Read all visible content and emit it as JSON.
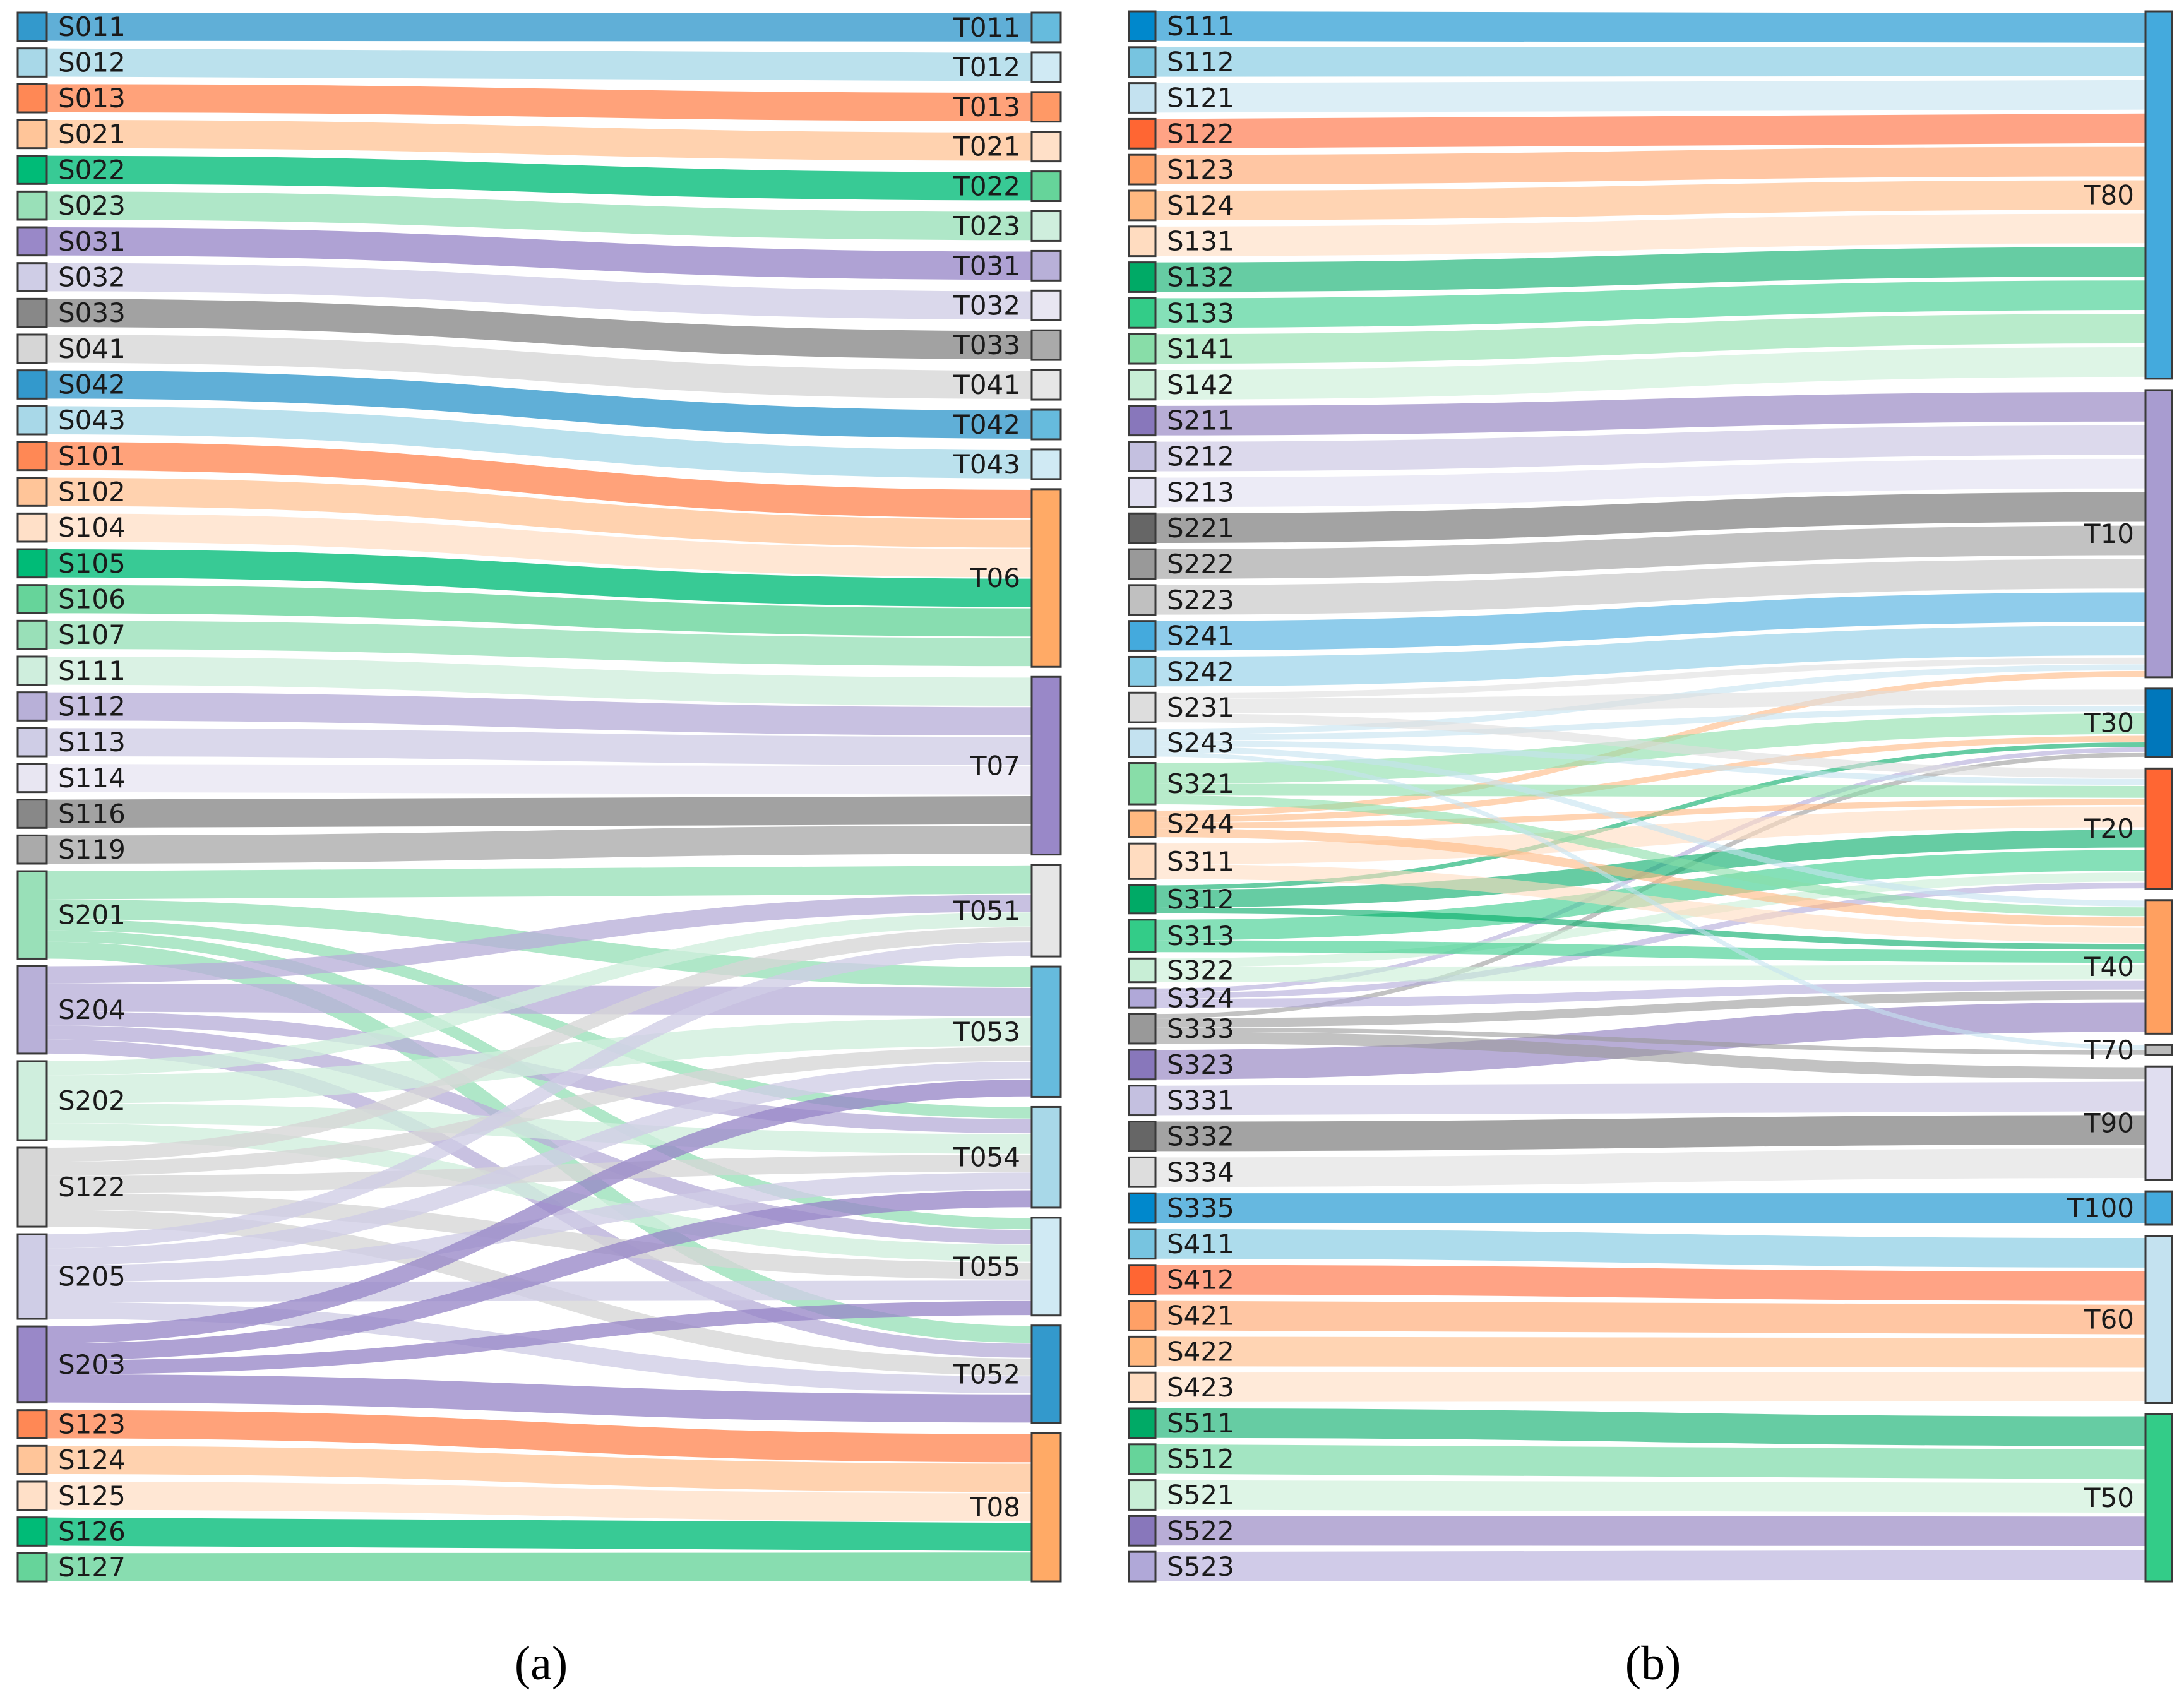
{
  "captions": {
    "a": "(a)",
    "b": "(b)"
  },
  "panel_a": {
    "sources": [
      {
        "id": "S011",
        "color": "#3399cc"
      },
      {
        "id": "S012",
        "color": "#a8d8e8"
      },
      {
        "id": "S013",
        "color": "#ff8855"
      },
      {
        "id": "S021",
        "color": "#ffc599"
      },
      {
        "id": "S022",
        "color": "#00bb77"
      },
      {
        "id": "S023",
        "color": "#99e0b8"
      },
      {
        "id": "S031",
        "color": "#9988c8"
      },
      {
        "id": "S032",
        "color": "#cfcde6"
      },
      {
        "id": "S033",
        "color": "#888888"
      },
      {
        "id": "S041",
        "color": "#d6d6d6"
      },
      {
        "id": "S042",
        "color": "#3399cc"
      },
      {
        "id": "S043",
        "color": "#a8d8e8"
      },
      {
        "id": "S101",
        "color": "#ff8855"
      },
      {
        "id": "S102",
        "color": "#ffc599"
      },
      {
        "id": "S104",
        "color": "#ffe0c8"
      },
      {
        "id": "S105",
        "color": "#00bb77"
      },
      {
        "id": "S106",
        "color": "#66d49a"
      },
      {
        "id": "S107",
        "color": "#99e0b8"
      },
      {
        "id": "S111",
        "color": "#cfeedd"
      },
      {
        "id": "S112",
        "color": "#b8b0d8"
      },
      {
        "id": "S113",
        "color": "#cfcde6"
      },
      {
        "id": "S114",
        "color": "#e8e6f2"
      },
      {
        "id": "S116",
        "color": "#888888"
      },
      {
        "id": "S119",
        "color": "#aaaaaa"
      },
      {
        "id": "S201",
        "color": "#99e0b8"
      },
      {
        "id": "S204",
        "color": "#b8b0d8"
      },
      {
        "id": "S202",
        "color": "#cfeedd"
      },
      {
        "id": "S122",
        "color": "#d6d6d6"
      },
      {
        "id": "S205",
        "color": "#cfcde6"
      },
      {
        "id": "S203",
        "color": "#9988c8"
      },
      {
        "id": "S123",
        "color": "#ff8855"
      },
      {
        "id": "S124",
        "color": "#ffc599"
      },
      {
        "id": "S125",
        "color": "#ffe0c8"
      },
      {
        "id": "S126",
        "color": "#00bb77"
      },
      {
        "id": "S127",
        "color": "#66d49a"
      }
    ],
    "targets": [
      {
        "id": "T011",
        "color": "#66bbdd"
      },
      {
        "id": "T012",
        "color": "#d0eaf4"
      },
      {
        "id": "T013",
        "color": "#ff9966"
      },
      {
        "id": "T021",
        "color": "#ffe0c8"
      },
      {
        "id": "T022",
        "color": "#66d49a"
      },
      {
        "id": "T023",
        "color": "#cfeedd"
      },
      {
        "id": "T031",
        "color": "#b8b0d8"
      },
      {
        "id": "T032",
        "color": "#e8e6f2"
      },
      {
        "id": "T033",
        "color": "#aaaaaa"
      },
      {
        "id": "T041",
        "color": "#e6e6e6"
      },
      {
        "id": "T042",
        "color": "#66bbdd"
      },
      {
        "id": "T043",
        "color": "#d0eaf4"
      },
      {
        "id": "T06",
        "color": "#ffaa66"
      },
      {
        "id": "T07",
        "color": "#9988c8"
      },
      {
        "id": "T051",
        "color": "#e6e6e6"
      },
      {
        "id": "T053",
        "color": "#66bbdd"
      },
      {
        "id": "T054",
        "color": "#a8d8e8"
      },
      {
        "id": "T055",
        "color": "#d0eaf4"
      },
      {
        "id": "T052",
        "color": "#3399cc"
      },
      {
        "id": "T08",
        "color": "#ffaa66"
      }
    ],
    "links": [
      [
        "S011",
        "T011",
        1
      ],
      [
        "S012",
        "T012",
        1
      ],
      [
        "S013",
        "T013",
        1
      ],
      [
        "S021",
        "T021",
        1
      ],
      [
        "S022",
        "T022",
        1
      ],
      [
        "S023",
        "T023",
        1
      ],
      [
        "S031",
        "T031",
        1
      ],
      [
        "S032",
        "T032",
        1
      ],
      [
        "S033",
        "T033",
        1
      ],
      [
        "S041",
        "T041",
        1
      ],
      [
        "S042",
        "T042",
        1
      ],
      [
        "S043",
        "T043",
        1
      ],
      [
        "S101",
        "T06",
        1
      ],
      [
        "S102",
        "T06",
        1
      ],
      [
        "S104",
        "T06",
        1
      ],
      [
        "S105",
        "T06",
        1
      ],
      [
        "S106",
        "T06",
        1
      ],
      [
        "S107",
        "T06",
        1
      ],
      [
        "S111",
        "T07",
        1
      ],
      [
        "S112",
        "T07",
        1
      ],
      [
        "S113",
        "T07",
        1
      ],
      [
        "S114",
        "T07",
        1
      ],
      [
        "S116",
        "T07",
        1
      ],
      [
        "S119",
        "T07",
        1
      ],
      [
        "S201",
        "T051",
        1
      ],
      [
        "S201",
        "T053",
        0.7
      ],
      [
        "S201",
        "T054",
        0.4
      ],
      [
        "S201",
        "T055",
        0.4
      ],
      [
        "S201",
        "T052",
        0.6
      ],
      [
        "S204",
        "T051",
        0.6
      ],
      [
        "S204",
        "T053",
        1
      ],
      [
        "S204",
        "T054",
        0.5
      ],
      [
        "S204",
        "T055",
        0.5
      ],
      [
        "S204",
        "T052",
        0.5
      ],
      [
        "S202",
        "T051",
        0.5
      ],
      [
        "S202",
        "T053",
        1
      ],
      [
        "S202",
        "T054",
        0.7
      ],
      [
        "S202",
        "T055",
        0.6
      ],
      [
        "S122",
        "T051",
        0.5
      ],
      [
        "S122",
        "T053",
        0.5
      ],
      [
        "S122",
        "T054",
        0.6
      ],
      [
        "S122",
        "T055",
        0.6
      ],
      [
        "S122",
        "T052",
        0.6
      ],
      [
        "S205",
        "T051",
        0.5
      ],
      [
        "S205",
        "T053",
        0.6
      ],
      [
        "S205",
        "T054",
        0.6
      ],
      [
        "S205",
        "T055",
        0.7
      ],
      [
        "S205",
        "T052",
        0.6
      ],
      [
        "S203",
        "T053",
        0.6
      ],
      [
        "S203",
        "T054",
        0.6
      ],
      [
        "S203",
        "T055",
        0.5
      ],
      [
        "S203",
        "T052",
        1
      ],
      [
        "S123",
        "T08",
        1
      ],
      [
        "S124",
        "T08",
        1
      ],
      [
        "S125",
        "T08",
        1
      ],
      [
        "S126",
        "T08",
        1
      ],
      [
        "S127",
        "T08",
        1
      ]
    ]
  },
  "panel_b": {
    "sources": [
      {
        "id": "S111",
        "color": "#0088cc"
      },
      {
        "id": "S112",
        "color": "#77c4e0"
      },
      {
        "id": "S121",
        "color": "#c4e2f0"
      },
      {
        "id": "S122",
        "color": "#ff6633"
      },
      {
        "id": "S123",
        "color": "#ffa066"
      },
      {
        "id": "S124",
        "color": "#ffb880"
      },
      {
        "id": "S131",
        "color": "#ffdcc0"
      },
      {
        "id": "S132",
        "color": "#00aa66"
      },
      {
        "id": "S133",
        "color": "#33cc88"
      },
      {
        "id": "S141",
        "color": "#88dda8"
      },
      {
        "id": "S142",
        "color": "#c8eed6"
      },
      {
        "id": "S211",
        "color": "#8877bb"
      },
      {
        "id": "S212",
        "color": "#c4c0e0"
      },
      {
        "id": "S213",
        "color": "#e0def0"
      },
      {
        "id": "S221",
        "color": "#666666"
      },
      {
        "id": "S222",
        "color": "#999999"
      },
      {
        "id": "S223",
        "color": "#c0c0c0"
      },
      {
        "id": "S241",
        "color": "#44aadd"
      },
      {
        "id": "S242",
        "color": "#88cce6"
      },
      {
        "id": "S231",
        "color": "#dddddd"
      },
      {
        "id": "S243",
        "color": "#c4e2f0"
      },
      {
        "id": "S321",
        "color": "#88dda8"
      },
      {
        "id": "S244",
        "color": "#ffb880"
      },
      {
        "id": "S311",
        "color": "#ffdcc0"
      },
      {
        "id": "S312",
        "color": "#00aa66"
      },
      {
        "id": "S313",
        "color": "#33cc88"
      },
      {
        "id": "S322",
        "color": "#c8eed6"
      },
      {
        "id": "S324",
        "color": "#b0a8d8"
      },
      {
        "id": "S333",
        "color": "#999999"
      },
      {
        "id": "S323",
        "color": "#8877bb"
      },
      {
        "id": "S331",
        "color": "#c4c0e0"
      },
      {
        "id": "S332",
        "color": "#666666"
      },
      {
        "id": "S334",
        "color": "#dddddd"
      },
      {
        "id": "S335",
        "color": "#0088cc"
      },
      {
        "id": "S411",
        "color": "#77c4e0"
      },
      {
        "id": "S412",
        "color": "#ff6633"
      },
      {
        "id": "S421",
        "color": "#ffa066"
      },
      {
        "id": "S422",
        "color": "#ffb880"
      },
      {
        "id": "S423",
        "color": "#ffdcc0"
      },
      {
        "id": "S511",
        "color": "#00aa66"
      },
      {
        "id": "S512",
        "color": "#66d49a"
      },
      {
        "id": "S521",
        "color": "#c8eed6"
      },
      {
        "id": "S522",
        "color": "#8877bb"
      },
      {
        "id": "S523",
        "color": "#b0a8d8"
      }
    ],
    "targets": [
      {
        "id": "T80",
        "color": "#44aadd"
      },
      {
        "id": "T10",
        "color": "#a89cd0"
      },
      {
        "id": "T30",
        "color": "#0077bb"
      },
      {
        "id": "T20",
        "color": "#ff6633"
      },
      {
        "id": "T40",
        "color": "#ffa060"
      },
      {
        "id": "T70",
        "color": "#bbbbbb"
      },
      {
        "id": "T90",
        "color": "#e0def0"
      },
      {
        "id": "T100",
        "color": "#44aadd"
      },
      {
        "id": "T60",
        "color": "#c4e2f0"
      },
      {
        "id": "T50",
        "color": "#33cc88"
      }
    ],
    "links": [
      [
        "S111",
        "T80",
        1
      ],
      [
        "S112",
        "T80",
        1
      ],
      [
        "S121",
        "T80",
        1
      ],
      [
        "S122",
        "T80",
        1
      ],
      [
        "S123",
        "T80",
        1
      ],
      [
        "S124",
        "T80",
        1
      ],
      [
        "S131",
        "T80",
        1
      ],
      [
        "S132",
        "T80",
        1
      ],
      [
        "S133",
        "T80",
        1
      ],
      [
        "S141",
        "T80",
        1
      ],
      [
        "S142",
        "T80",
        1
      ],
      [
        "S211",
        "T10",
        1
      ],
      [
        "S212",
        "T10",
        1
      ],
      [
        "S213",
        "T10",
        1
      ],
      [
        "S221",
        "T10",
        1
      ],
      [
        "S222",
        "T10",
        1
      ],
      [
        "S223",
        "T10",
        1
      ],
      [
        "S241",
        "T10",
        1
      ],
      [
        "S242",
        "T10",
        1
      ],
      [
        "S231",
        "T10",
        0.2
      ],
      [
        "S243",
        "T10",
        0.2
      ],
      [
        "S244",
        "T10",
        0.2
      ],
      [
        "S231",
        "T30",
        0.5
      ],
      [
        "S243",
        "T30",
        0.2
      ],
      [
        "S321",
        "T30",
        0.7
      ],
      [
        "S244",
        "T30",
        0.2
      ],
      [
        "S312",
        "T30",
        0.15
      ],
      [
        "S324",
        "T30",
        0.15
      ],
      [
        "S333",
        "T30",
        0.15
      ],
      [
        "S231",
        "T20",
        0.3
      ],
      [
        "S243",
        "T20",
        0.2
      ],
      [
        "S321",
        "T20",
        0.4
      ],
      [
        "S244",
        "T20",
        0.2
      ],
      [
        "S311",
        "T20",
        0.7
      ],
      [
        "S312",
        "T20",
        0.6
      ],
      [
        "S313",
        "T20",
        0.7
      ],
      [
        "S322",
        "T20",
        0.3
      ],
      [
        "S324",
        "T20",
        0.2
      ],
      [
        "S243",
        "T40",
        0.2
      ],
      [
        "S321",
        "T40",
        0.3
      ],
      [
        "S244",
        "T40",
        0.3
      ],
      [
        "S311",
        "T40",
        0.5
      ],
      [
        "S312",
        "T40",
        0.2
      ],
      [
        "S313",
        "T40",
        0.4
      ],
      [
        "S322",
        "T40",
        0.5
      ],
      [
        "S324",
        "T40",
        0.3
      ],
      [
        "S333",
        "T40",
        0.3
      ],
      [
        "S323",
        "T40",
        1
      ],
      [
        "S333",
        "T70",
        0.15
      ],
      [
        "S243",
        "T70",
        0.15
      ],
      [
        "S333",
        "T90",
        0.4
      ],
      [
        "S331",
        "T90",
        1
      ],
      [
        "S332",
        "T90",
        1
      ],
      [
        "S334",
        "T90",
        1
      ],
      [
        "S335",
        "T100",
        1
      ],
      [
        "S411",
        "T60",
        1
      ],
      [
        "S412",
        "T60",
        1
      ],
      [
        "S421",
        "T60",
        1
      ],
      [
        "S422",
        "T60",
        1
      ],
      [
        "S423",
        "T60",
        1
      ],
      [
        "S511",
        "T50",
        1
      ],
      [
        "S512",
        "T50",
        1
      ],
      [
        "S521",
        "T50",
        1
      ],
      [
        "S522",
        "T50",
        1
      ],
      [
        "S523",
        "T50",
        1
      ]
    ]
  }
}
